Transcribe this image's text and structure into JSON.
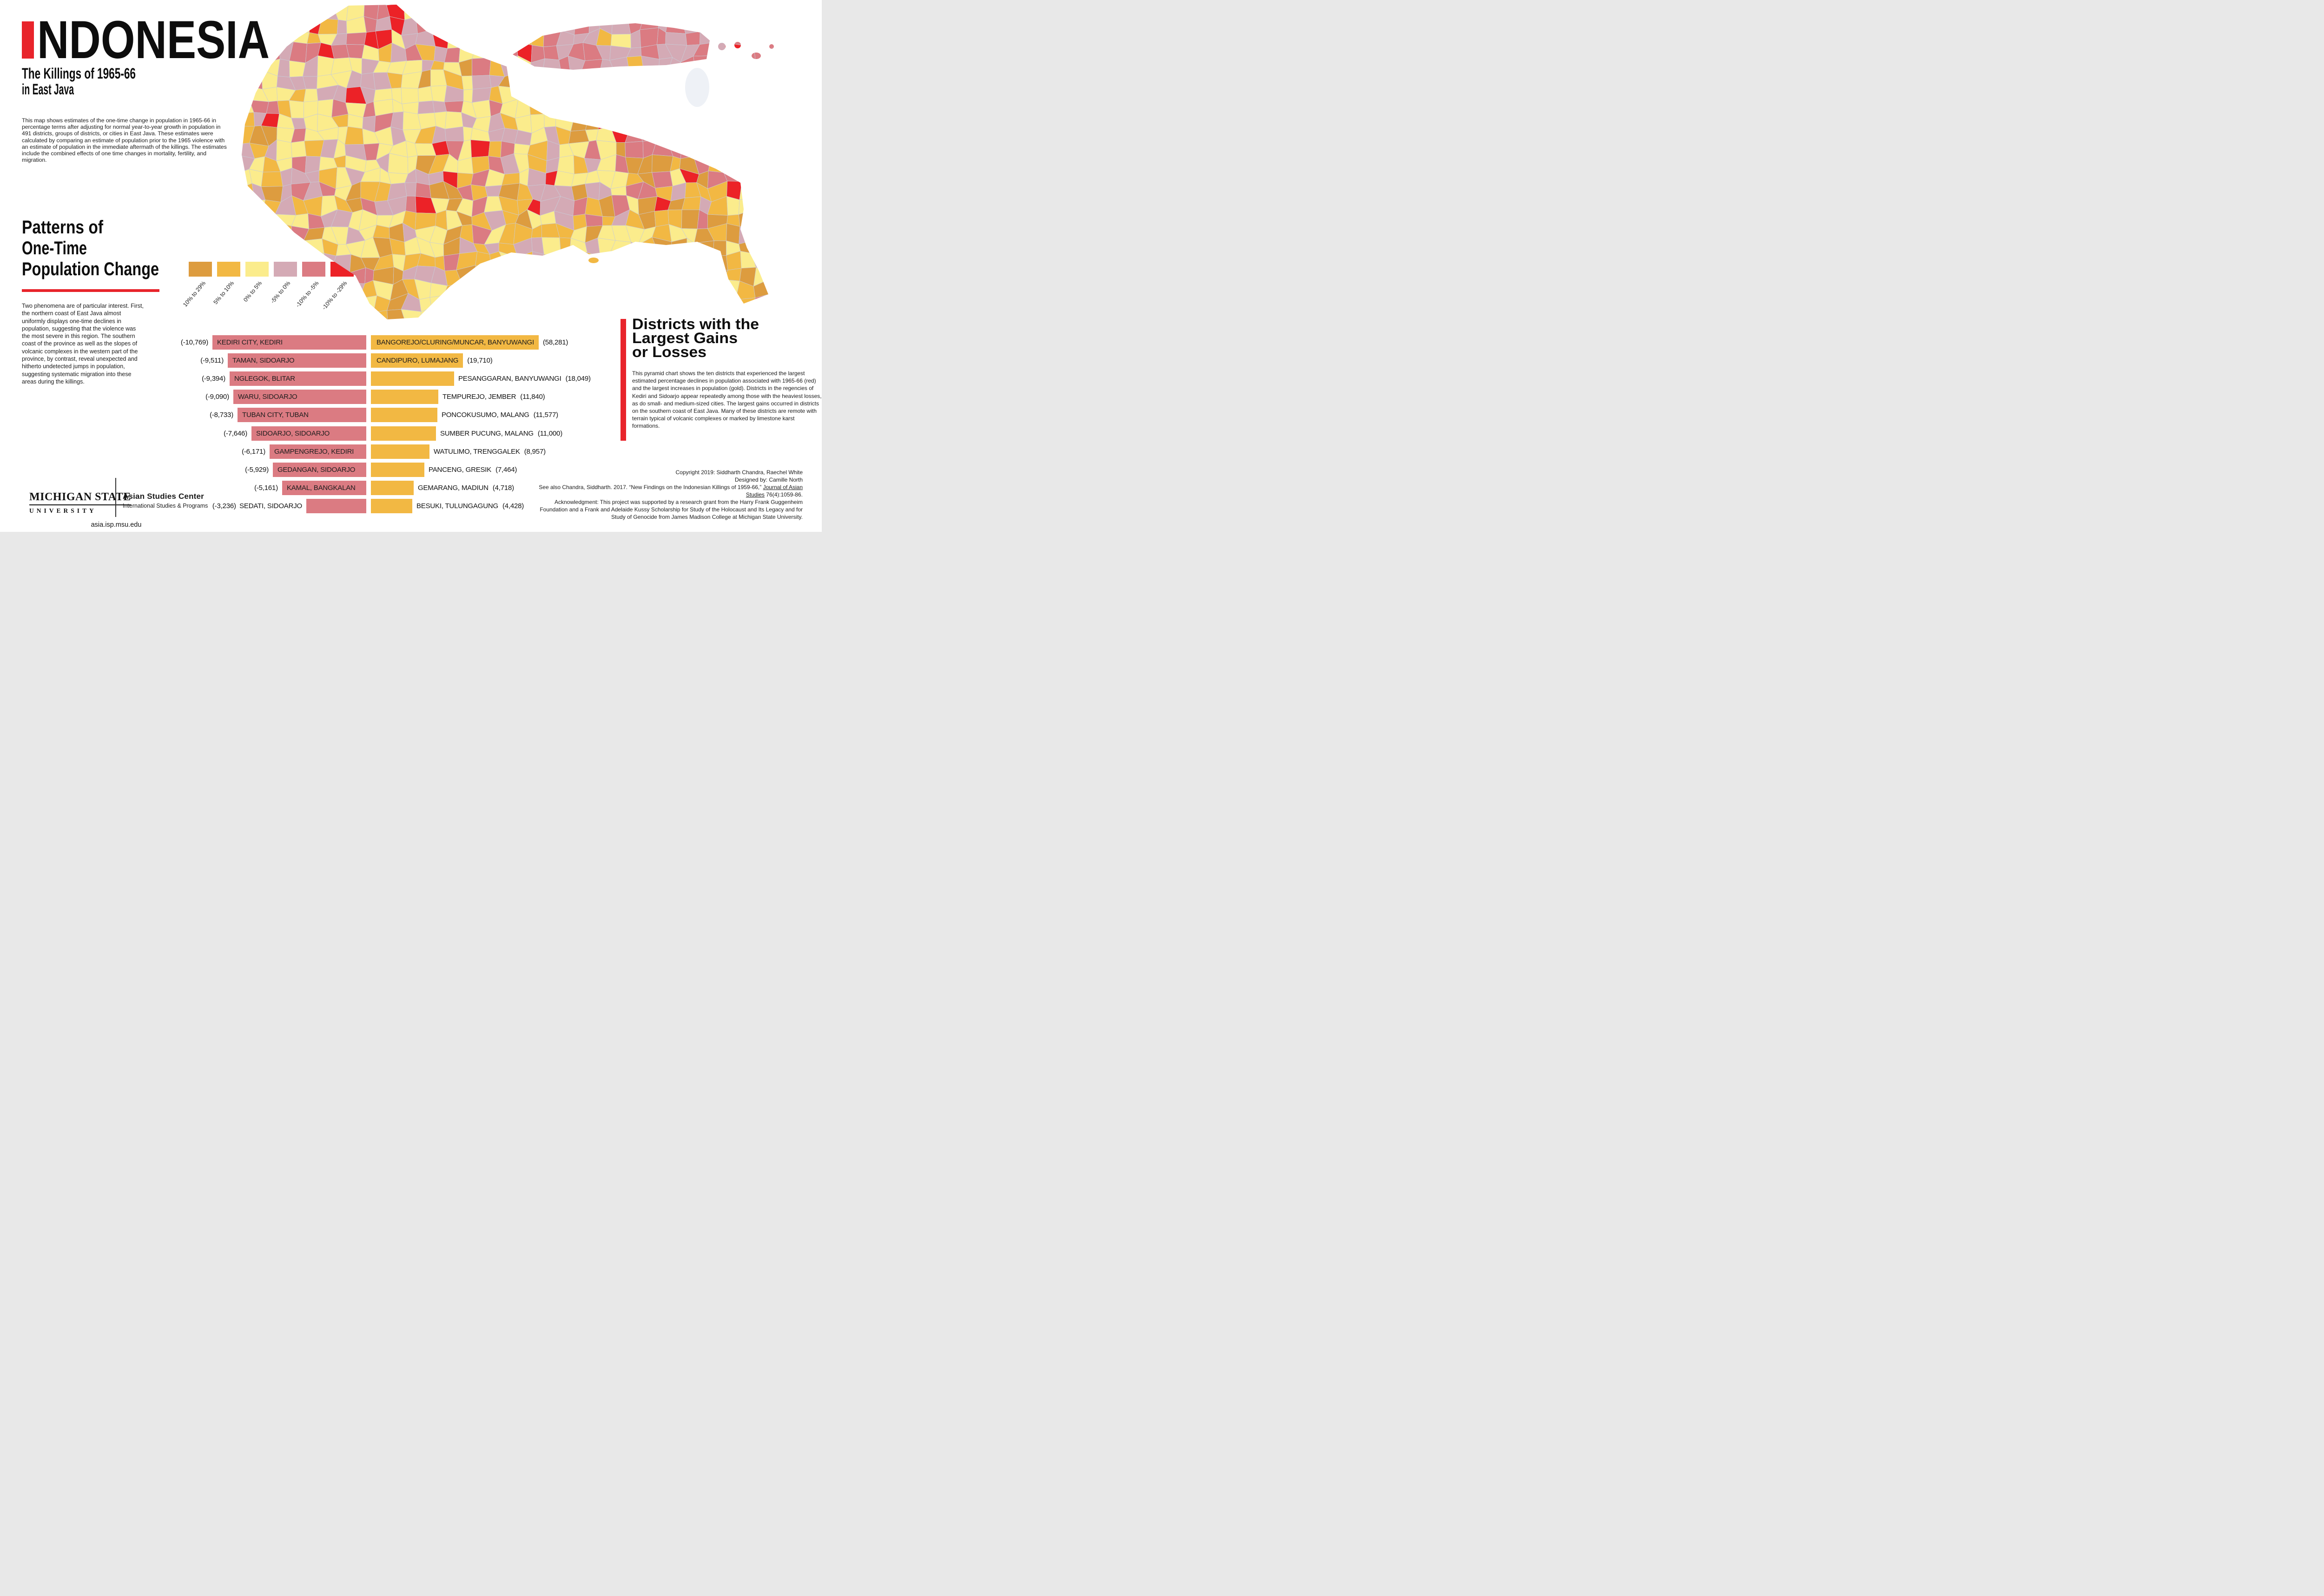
{
  "header": {
    "title_accent": "I",
    "title_rest": "NDONESIA",
    "full_title": "INDONESIA",
    "subtitle_line1": "The Killings of 1965-66",
    "subtitle_line2": "in East Java",
    "intro": "This map shows estimates of the one-time change in population in 1965-66 in percentage terms after adjusting for normal year-to-year growth in population in 491 districts, groups of districts, or cities in East Java. These estimates were calculated by comparing an estimate of population prior to the 1965 violence with an estimate of population in the immediate aftermath of the killings. The estimates include the combined effects of one time changes in mortality, fertility, and migration."
  },
  "patterns": {
    "heading_line1": "Patterns of",
    "heading_line2": "One-Time",
    "heading_line3": "Population Change",
    "body": "Two phenomena are of particular interest. First, the northern coast of East Java almost uniformly displays one-time declines in population, suggesting that the violence was the most severe in this region. The southern coast of the province as well as the slopes of volcanic complexes in the western part of the province, by contrast, reveal unexpected and hitherto undetected jumps in population, suggesting systematic migration into these areas during the killings."
  },
  "legend": {
    "items": [
      {
        "label": "10% to 29%",
        "color": "#DD9C3F"
      },
      {
        "label": "5% to 10%",
        "color": "#F2B843"
      },
      {
        "label": "0% to 5%",
        "color": "#FBEC8C"
      },
      {
        "label": "-5% to 0%",
        "color": "#D4AAB5"
      },
      {
        "label": "-10% to -5%",
        "color": "#DB7B82"
      },
      {
        "label": "-10% to -29%",
        "color": "#EC2227"
      }
    ]
  },
  "map": {
    "region": "East Java with Madura island",
    "sea_color": "#ffffff",
    "border_color": "#c9cdd7",
    "accent_red": "#E8242B"
  },
  "districts_panel": {
    "heading_line1": "Districts with the",
    "heading_line2": "Largest Gains",
    "heading_line3": "or Losses",
    "body": "This pyramid chart shows the ten districts that experienced the largest estimated percentage declines in population associated with 1965-66 (red) and the largest increases in population (gold). Districts in the regencies of Kediri and Sidoarjo appear repeatedly among those with the heaviest losses, as do small- and medium-sized cities. The largest gains occurred in districts on the southern coast of East Java. Many of these districts are remote with terrain typical of volcanic complexes or marked by limestone karst formations."
  },
  "chart_data": {
    "type": "bar",
    "title": "Districts with the Largest Gains or Losses",
    "loss_color": "#DB7B82",
    "gain_color": "#F2B843",
    "losses": [
      {
        "district": "KEDIRI CITY, KEDIRI",
        "value": -10769
      },
      {
        "district": "TAMAN, SIDOARJO",
        "value": -9511
      },
      {
        "district": "NGLEGOK, BLITAR",
        "value": -9394
      },
      {
        "district": "WARU, SIDOARJO",
        "value": -9090
      },
      {
        "district": "TUBAN CITY, TUBAN",
        "value": -8733
      },
      {
        "district": "SIDOARJO, SIDOARJO",
        "value": -7646
      },
      {
        "district": "GAMPENGREJO, KEDIRI",
        "value": -6171
      },
      {
        "district": "GEDANGAN, SIDOARJO",
        "value": -5929
      },
      {
        "district": "KAMAL, BANGKALAN",
        "value": -5161
      },
      {
        "district": "SEDATI, SIDOARJO",
        "value": -3236
      }
    ],
    "gains": [
      {
        "district": "BANGOREJO/CLURING/MUNCAR, BANYUWANGI",
        "value": 58281
      },
      {
        "district": "CANDIPURO, LUMAJANG",
        "value": 19710
      },
      {
        "district": "PESANGGARAN, BANYUWANGI",
        "value": 18049
      },
      {
        "district": "TEMPUREJO, JEMBER",
        "value": 11840
      },
      {
        "district": "PONCOKUSUMO, MALANG",
        "value": 11577
      },
      {
        "district": "SUMBER PUCUNG, MALANG",
        "value": 11000
      },
      {
        "district": "WATULIMO, TRENGGALEK",
        "value": 8957
      },
      {
        "district": "PANCENG, GRESIK",
        "value": 7464
      },
      {
        "district": "GEMARANG, MADIUN",
        "value": 4718
      },
      {
        "district": "BESUKI, TULUNGAGUNG",
        "value": 4428
      }
    ]
  },
  "footer": {
    "msu_line1": "MICHIGAN STATE",
    "msu_line2": "UNIVERSITY",
    "center_name": "Asian Studies Center",
    "center_dept": "International Studies & Programs",
    "url": "asia.isp.msu.edu",
    "copyright": "Copyright 2019: Siddharth Chandra, Raechel White",
    "designed": "Designed by: Camille North",
    "see_also_pre": "See also Chandra, Siddharth. 2017. “New Findings on the Indonesian Killings of 1959-66,” ",
    "see_also_underline": "Journal of Asian Studies",
    "see_also_post": " 76(4):1059-86.",
    "acknowledgment": "Acknowledgment: This project was supported by a research grant from the Harry Frank Guggenheim Foundation and a Frank and Adelaide Kussy Scholarship for Study of the Holocaust and Its Legacy and for Study of Genocide from James Madison College at Michigan State University."
  }
}
